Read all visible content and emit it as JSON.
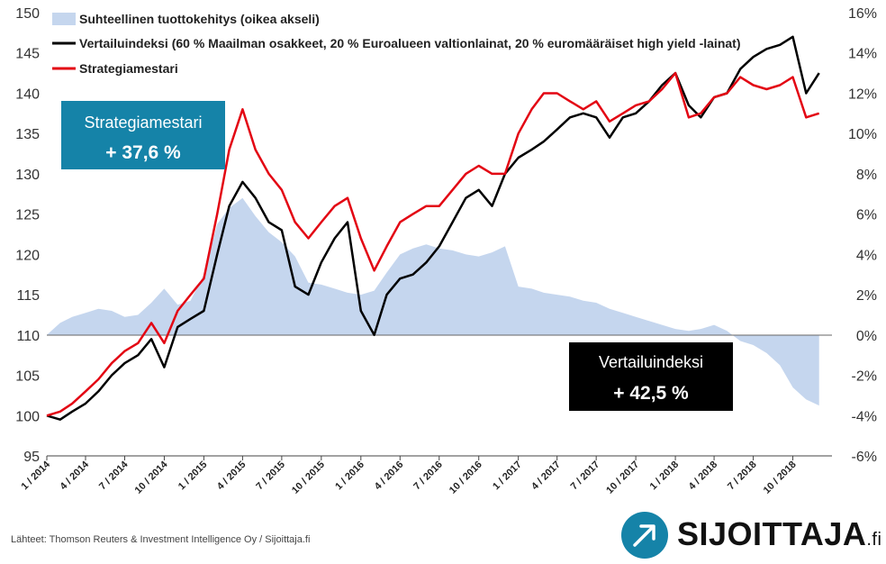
{
  "chart_data": {
    "type": "line",
    "left_axis": {
      "ticks": [
        95,
        100,
        105,
        110,
        115,
        120,
        125,
        130,
        135,
        140,
        145,
        150
      ],
      "range": [
        95,
        150
      ]
    },
    "right_axis": {
      "ticks": [
        "-6%",
        "-4%",
        "-2%",
        "0%",
        "2%",
        "4%",
        "6%",
        "8%",
        "10%",
        "12%",
        "14%",
        "16%"
      ],
      "range": [
        -6,
        16
      ]
    },
    "x_tick_labels": [
      "1 / 2014",
      "4 / 2014",
      "7 / 2014",
      "10 / 2014",
      "1 / 2015",
      "4 / 2015",
      "7 / 2015",
      "10 / 2015",
      "1 / 2016",
      "4 / 2016",
      "7 / 2016",
      "10 / 2016",
      "1 / 2017",
      "4 / 2017",
      "7 / 2017",
      "10 / 2017",
      "1 / 2018",
      "4 / 2018",
      "7 / 2018",
      "10 / 2018"
    ],
    "series": [
      {
        "name": "Suhteellinen tuottokehitys (oikea akseli)",
        "type": "area",
        "axis": "right",
        "color": "#c5d6ee",
        "x": [
          "2014-01",
          "2014-02",
          "2014-03",
          "2014-04",
          "2014-05",
          "2014-06",
          "2014-07",
          "2014-08",
          "2014-09",
          "2014-10",
          "2014-11",
          "2014-12",
          "2015-01",
          "2015-02",
          "2015-03",
          "2015-04",
          "2015-05",
          "2015-06",
          "2015-07",
          "2015-08",
          "2015-09",
          "2015-10",
          "2015-11",
          "2015-12",
          "2016-01",
          "2016-02",
          "2016-03",
          "2016-04",
          "2016-05",
          "2016-06",
          "2016-07",
          "2016-08",
          "2016-09",
          "2016-10",
          "2016-11",
          "2016-12",
          "2017-01",
          "2017-02",
          "2017-03",
          "2017-04",
          "2017-05",
          "2017-06",
          "2017-07",
          "2017-08",
          "2017-09",
          "2017-10",
          "2017-11",
          "2017-12",
          "2018-01",
          "2018-02",
          "2018-03",
          "2018-04",
          "2018-05",
          "2018-06",
          "2018-07",
          "2018-08",
          "2018-09",
          "2018-10",
          "2018-11",
          "2018-12"
        ],
        "values": [
          0.0,
          0.6,
          0.9,
          1.1,
          1.3,
          1.2,
          0.9,
          1.0,
          1.6,
          2.3,
          1.5,
          1.7,
          3.0,
          5.5,
          6.3,
          6.8,
          5.9,
          5.1,
          4.6,
          3.9,
          2.6,
          2.5,
          2.3,
          2.1,
          2.0,
          2.2,
          3.1,
          4.0,
          4.3,
          4.5,
          4.3,
          4.2,
          4.0,
          3.9,
          4.1,
          4.4,
          2.4,
          2.3,
          2.1,
          2.0,
          1.9,
          1.7,
          1.6,
          1.3,
          1.1,
          0.9,
          0.7,
          0.5,
          0.3,
          0.2,
          0.3,
          0.5,
          0.2,
          -0.3,
          -0.5,
          -0.9,
          -1.5,
          -2.6,
          -3.2,
          -3.5
        ]
      },
      {
        "name": "Vertailuindeksi (60 % Maailman osakkeet, 20 % Euroalueen valtionlainat, 20 % euromääräiset high yield -lainat)",
        "type": "line",
        "axis": "left",
        "color": "#000000",
        "x": [
          "2014-01",
          "2014-02",
          "2014-03",
          "2014-04",
          "2014-05",
          "2014-06",
          "2014-07",
          "2014-08",
          "2014-09",
          "2014-10",
          "2014-11",
          "2014-12",
          "2015-01",
          "2015-02",
          "2015-03",
          "2015-04",
          "2015-05",
          "2015-06",
          "2015-07",
          "2015-08",
          "2015-09",
          "2015-10",
          "2015-11",
          "2015-12",
          "2016-01",
          "2016-02",
          "2016-03",
          "2016-04",
          "2016-05",
          "2016-06",
          "2016-07",
          "2016-08",
          "2016-09",
          "2016-10",
          "2016-11",
          "2016-12",
          "2017-01",
          "2017-02",
          "2017-03",
          "2017-04",
          "2017-05",
          "2017-06",
          "2017-07",
          "2017-08",
          "2017-09",
          "2017-10",
          "2017-11",
          "2017-12",
          "2018-01",
          "2018-02",
          "2018-03",
          "2018-04",
          "2018-05",
          "2018-06",
          "2018-07",
          "2018-08",
          "2018-09",
          "2018-10",
          "2018-11",
          "2018-12"
        ],
        "values": [
          100,
          99.5,
          100.5,
          101.5,
          103,
          105,
          106.5,
          107.5,
          109.5,
          106,
          111,
          112,
          113,
          120,
          126,
          129,
          127,
          124,
          123,
          116,
          115,
          119,
          122,
          124,
          113,
          110,
          115,
          117,
          117.5,
          119,
          121,
          124,
          127,
          128,
          126,
          130,
          132,
          133,
          134,
          135.5,
          137,
          137.5,
          137,
          134.5,
          137,
          137.5,
          139,
          141,
          142.5,
          138.5,
          137,
          139.5,
          140,
          143,
          144.5,
          145.5,
          146,
          147,
          140,
          142.5
        ]
      },
      {
        "name": "Strategiamestari",
        "type": "line",
        "axis": "left",
        "color": "#e30613",
        "x": [
          "2014-01",
          "2014-02",
          "2014-03",
          "2014-04",
          "2014-05",
          "2014-06",
          "2014-07",
          "2014-08",
          "2014-09",
          "2014-10",
          "2014-11",
          "2014-12",
          "2015-01",
          "2015-02",
          "2015-03",
          "2015-04",
          "2015-05",
          "2015-06",
          "2015-07",
          "2015-08",
          "2015-09",
          "2015-10",
          "2015-11",
          "2015-12",
          "2016-01",
          "2016-02",
          "2016-03",
          "2016-04",
          "2016-05",
          "2016-06",
          "2016-07",
          "2016-08",
          "2016-09",
          "2016-10",
          "2016-11",
          "2016-12",
          "2017-01",
          "2017-02",
          "2017-03",
          "2017-04",
          "2017-05",
          "2017-06",
          "2017-07",
          "2017-08",
          "2017-09",
          "2017-10",
          "2017-11",
          "2017-12",
          "2018-01",
          "2018-02",
          "2018-03",
          "2018-04",
          "2018-05",
          "2018-06",
          "2018-07",
          "2018-08",
          "2018-09",
          "2018-10",
          "2018-11",
          "2018-12"
        ],
        "values": [
          100,
          100.5,
          101.5,
          103,
          104.5,
          106.5,
          108,
          109,
          111.5,
          109,
          113,
          115,
          117,
          125,
          133,
          138,
          133,
          130,
          128,
          124,
          122,
          124,
          126,
          127,
          122,
          118,
          121,
          124,
          125,
          126,
          126,
          128,
          130,
          131,
          130,
          130,
          135,
          138,
          140,
          140,
          139,
          138,
          139,
          136.5,
          137.5,
          138.5,
          139,
          140.5,
          142.5,
          137,
          137.5,
          139.5,
          140,
          142,
          141,
          140.5,
          141,
          142,
          137,
          137.5
        ]
      }
    ],
    "legend_placement": "top-left",
    "grid": false
  },
  "legend": {
    "area": "Suhteellinen tuottokehitys (oikea akseli)",
    "benchmark": "Vertailuindeksi (60 % Maailman osakkeet, 20 % Euroalueen valtionlainat, 20 % euromääräiset high yield -lainat)",
    "strategy": "Strategiamestari"
  },
  "callouts": {
    "strategy": {
      "title": "Strategiamestari",
      "value": "+ 37,6 %",
      "color": "#1583a8"
    },
    "benchmark": {
      "title": "Vertailuindeksi",
      "value": "+ 42,5 %",
      "color": "#000000"
    }
  },
  "source": "Lähteet: Thomson Reuters & Investment Intelligence Oy / Sijoittaja.fi",
  "logo": {
    "text": "SIJOITTAJA",
    "suffix": ".fi",
    "icon": "arrow-up-right-icon",
    "color": "#1583a8"
  }
}
